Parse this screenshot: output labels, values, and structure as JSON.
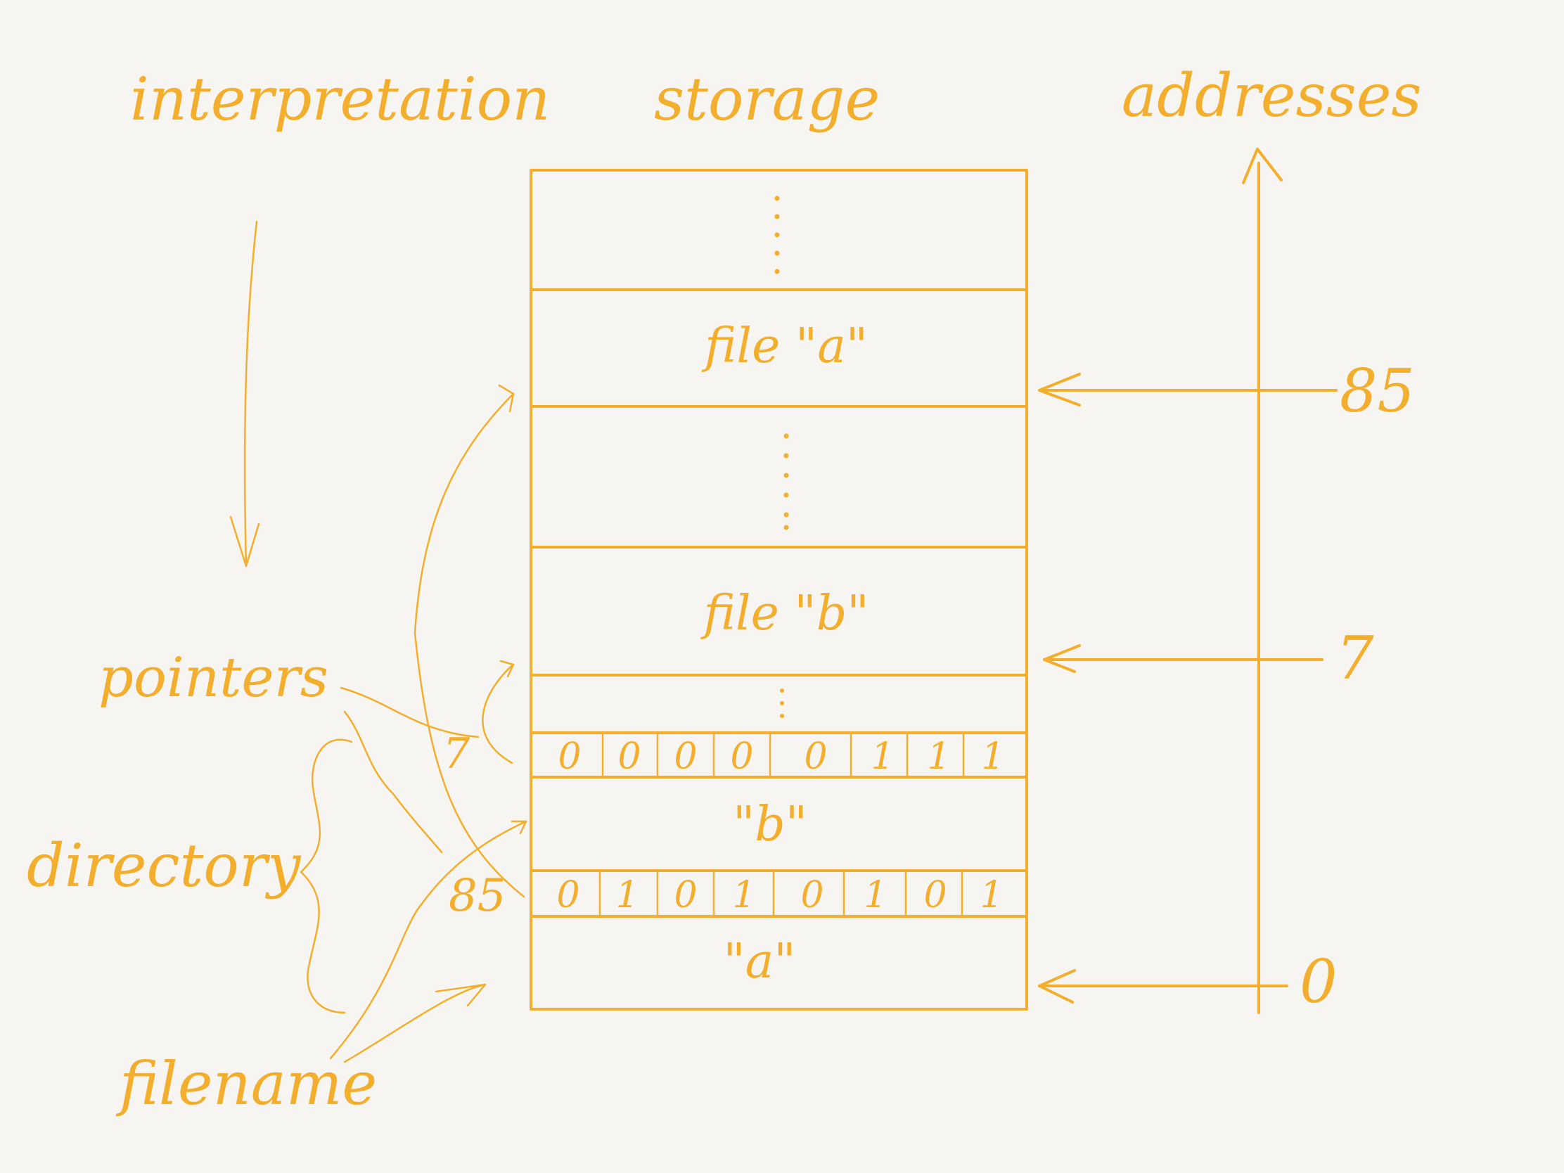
{
  "labels": {
    "interpretation": "interpretation",
    "storage": "storage",
    "addresses": "addresses",
    "pointers": "pointers",
    "directory": "directory",
    "filename": "filename"
  },
  "storage_rows": {
    "file_a": "file \"a\"",
    "file_b": "file \"b\"",
    "name_b": "\"b\"",
    "name_a": "\"a\""
  },
  "pointer_labels": {
    "ptr_7": "7",
    "ptr_85": "85"
  },
  "address_ticks": {
    "addr_85": "85",
    "addr_7": "7",
    "addr_0": "0"
  },
  "bits_row_7": [
    "0",
    "0",
    "0",
    "0",
    "0",
    "1",
    "1",
    "1"
  ],
  "bits_row_85": [
    "0",
    "1",
    "0",
    "1",
    "0",
    "1",
    "0",
    "1"
  ],
  "ink_color": "#f2ae2c"
}
